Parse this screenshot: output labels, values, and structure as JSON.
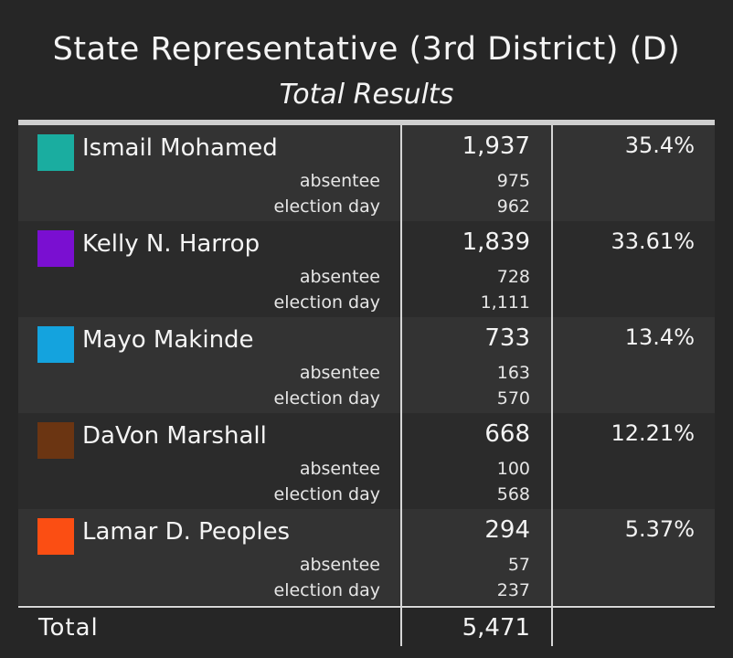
{
  "header": {
    "title": "State Representative (3rd District) (D)",
    "subtitle": "Total Results"
  },
  "sub_labels": {
    "absentee": "absentee",
    "election_day": "election day"
  },
  "chart_data": {
    "type": "table",
    "title": "State Representative (3rd District) (D)",
    "subtitle": "Total Results",
    "rows": [
      {
        "candidate": "Ismail Mohamed",
        "color": "#1aada0",
        "votes": "1,937",
        "absentee": "975",
        "election_day": "962",
        "percent": "35.4%"
      },
      {
        "candidate": "Kelly N. Harrop",
        "color": "#7a0fd1",
        "votes": "1,839",
        "absentee": "728",
        "election_day": "1,111",
        "percent": "33.61%"
      },
      {
        "candidate": "Mayo Makinde",
        "color": "#14a3de",
        "votes": "733",
        "absentee": "163",
        "election_day": "570",
        "percent": "13.4%"
      },
      {
        "candidate": "DaVon Marshall",
        "color": "#6b3512",
        "votes": "668",
        "absentee": "100",
        "election_day": "568",
        "percent": "12.21%"
      },
      {
        "candidate": "Lamar D. Peoples",
        "color": "#fb4e13",
        "votes": "294",
        "absentee": "57",
        "election_day": "237",
        "percent": "5.37%"
      }
    ],
    "total_label": "Total",
    "total_votes": "5,471"
  }
}
